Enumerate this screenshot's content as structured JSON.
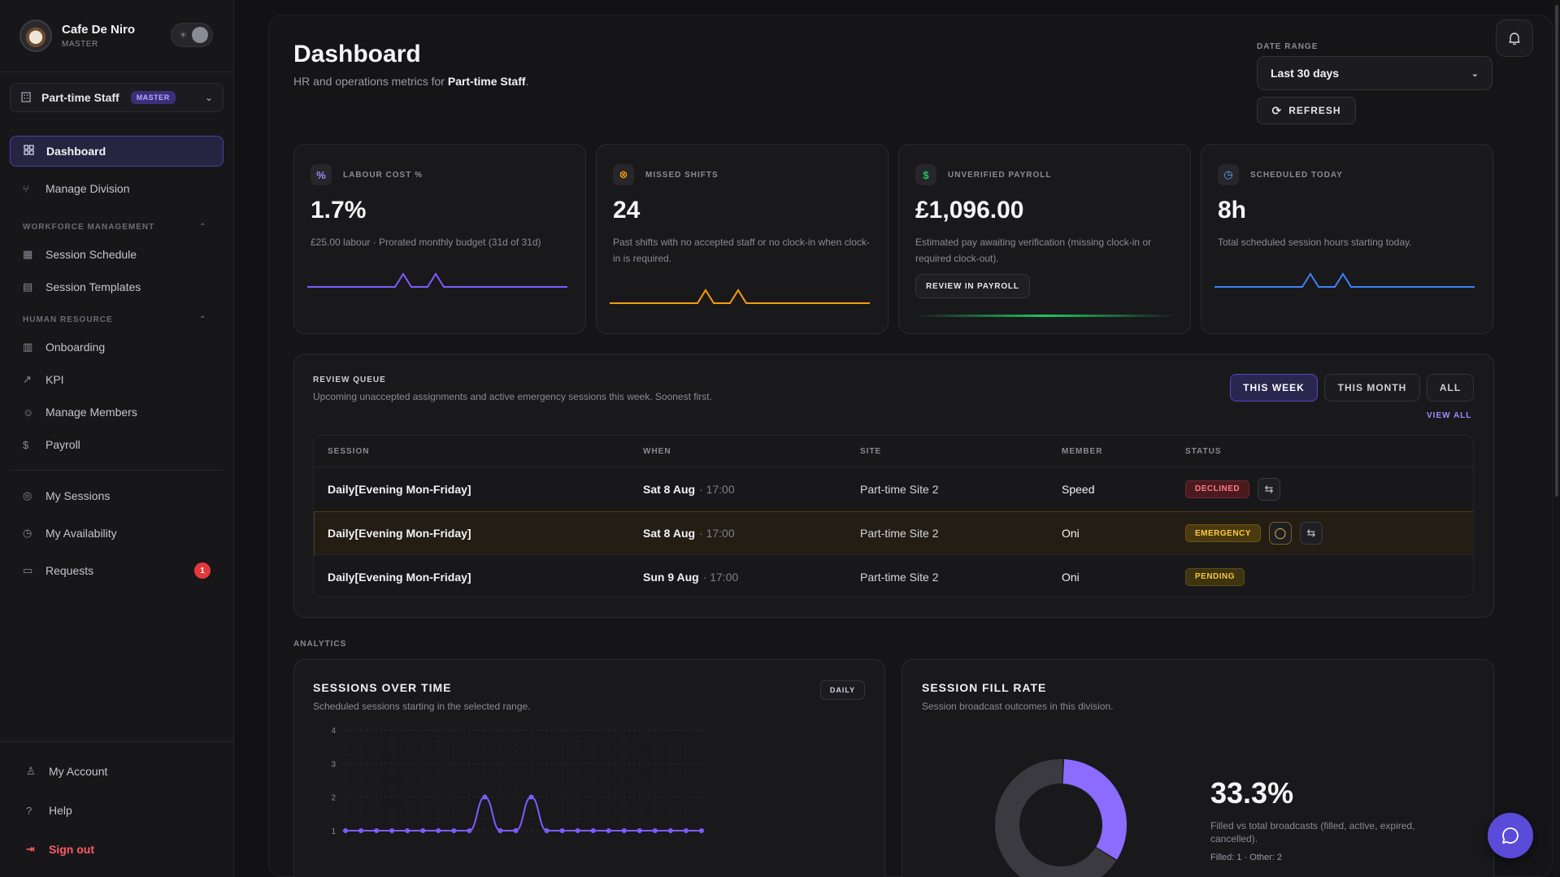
{
  "brand": {
    "name": "Cafe De Niro",
    "role": "MASTER"
  },
  "division": {
    "name": "Part-time Staff",
    "badge": "MASTER"
  },
  "nav": {
    "dashboard": "Dashboard",
    "manage_division": "Manage Division",
    "workforce_label": "WORKFORCE MANAGEMENT",
    "session_schedule": "Session Schedule",
    "session_templates": "Session Templates",
    "hr_label": "HUMAN RESOURCE",
    "onboarding": "Onboarding",
    "kpi": "KPI",
    "manage_members": "Manage Members",
    "payroll": "Payroll",
    "my_sessions": "My Sessions",
    "my_availability": "My Availability",
    "requests": "Requests",
    "requests_count": "1",
    "my_account": "My Account",
    "help": "Help",
    "sign_out": "Sign out"
  },
  "header": {
    "title": "Dashboard",
    "subtitle_prefix": "HR and operations metrics for ",
    "subtitle_division": "Part-time Staff",
    "subtitle_suffix": ".",
    "date_range_label": "DATE RANGE",
    "date_range_value": "Last 30 days",
    "refresh": "REFRESH"
  },
  "cards": {
    "labour": {
      "title": "LABOUR COST %",
      "value": "1.7%",
      "desc": "£25.00 labour · Prorated monthly budget (31d of 31d)",
      "color": "#7c5cff"
    },
    "missed": {
      "title": "MISSED SHIFTS",
      "value": "24",
      "desc": "Past shifts with no accepted staff or no clock-in when clock-in is required.",
      "color": "#f59e0b"
    },
    "payroll": {
      "title": "UNVERIFIED PAYROLL",
      "value": "£1,096.00",
      "desc": "Estimated pay awaiting verification (missing clock-in or required clock-out).",
      "button": "REVIEW IN PAYROLL",
      "color": "#22c55e"
    },
    "scheduled": {
      "title": "SCHEDULED TODAY",
      "value": "8h",
      "desc": "Total scheduled session hours starting today.",
      "color": "#3b82f6"
    }
  },
  "queue": {
    "title": "REVIEW QUEUE",
    "subtitle": "Upcoming unaccepted assignments and active emergency sessions this week. Soonest first.",
    "tabs": [
      "THIS WEEK",
      "THIS MONTH",
      "ALL"
    ],
    "view_all": "VIEW ALL",
    "columns": [
      "SESSION",
      "WHEN",
      "SITE",
      "MEMBER",
      "STATUS"
    ],
    "rows": [
      {
        "session": "Daily[Evening Mon-Friday]",
        "date": "Sat 8 Aug",
        "time": "· 17:00",
        "site": "Part-time Site 2",
        "member": "Speed",
        "status": "DECLINED"
      },
      {
        "session": "Daily[Evening Mon-Friday]",
        "date": "Sat 8 Aug",
        "time": "· 17:00",
        "site": "Part-time Site 2",
        "member": "Oni",
        "status": "EMERGENCY"
      },
      {
        "session": "Daily[Evening Mon-Friday]",
        "date": "Sun 9 Aug",
        "time": "· 17:00",
        "site": "Part-time Site 2",
        "member": "Oni",
        "status": "PENDING"
      }
    ]
  },
  "analytics": {
    "label": "ANALYTICS",
    "sessions": {
      "title": "SESSIONS OVER TIME",
      "subtitle": "Scheduled sessions starting in the selected range.",
      "toggle": "DAILY"
    },
    "fill": {
      "title": "SESSION FILL RATE",
      "subtitle": "Session broadcast outcomes in this division.",
      "percent": "33.3%",
      "desc": "Filled vs total broadcasts (filled, active, expired, cancelled).",
      "counts": "Filled: 1 · Other: 2"
    }
  },
  "chart_data": [
    {
      "type": "line",
      "title": "SESSIONS OVER TIME",
      "y_ticks": [
        "1",
        "2",
        "3",
        "4"
      ],
      "ylim": [
        1,
        4
      ],
      "series": [
        {
          "values": [
            1,
            1,
            1,
            1,
            1,
            1,
            1,
            1,
            1,
            2,
            1,
            1,
            2,
            1,
            1,
            1,
            1,
            1,
            1,
            1,
            1,
            1,
            1,
            1
          ]
        }
      ],
      "grid": true,
      "color": "#7c5cff"
    },
    {
      "type": "pie",
      "title": "SESSION FILL RATE",
      "slices": [
        {
          "name": "Filled",
          "value": 1
        },
        {
          "name": "Other",
          "value": 2
        }
      ],
      "colors": [
        "#8b6cff",
        "#3a3a40"
      ]
    }
  ]
}
